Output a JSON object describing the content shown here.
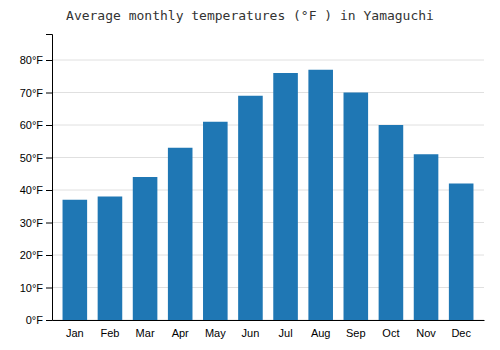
{
  "chart_data": {
    "type": "bar",
    "title": "Average monthly temperatures (°F ) in Yamaguchi",
    "categories": [
      "Jan",
      "Feb",
      "Mar",
      "Apr",
      "May",
      "Jun",
      "Jul",
      "Aug",
      "Sep",
      "Oct",
      "Nov",
      "Dec"
    ],
    "values": [
      37,
      38,
      44,
      53,
      61,
      69,
      76,
      77,
      70,
      60,
      51,
      42
    ],
    "ylim": [
      0,
      88
    ],
    "yticks": [
      {
        "value": 0,
        "label": "0°F"
      },
      {
        "value": 10,
        "label": "10°F"
      },
      {
        "value": 20,
        "label": "20°F"
      },
      {
        "value": 30,
        "label": "30°F"
      },
      {
        "value": 40,
        "label": "40°F"
      },
      {
        "value": 50,
        "label": "50°F"
      },
      {
        "value": 60,
        "label": "60°F"
      },
      {
        "value": 70,
        "label": "70°F"
      },
      {
        "value": 80,
        "label": "80°F"
      }
    ],
    "grid": true
  }
}
